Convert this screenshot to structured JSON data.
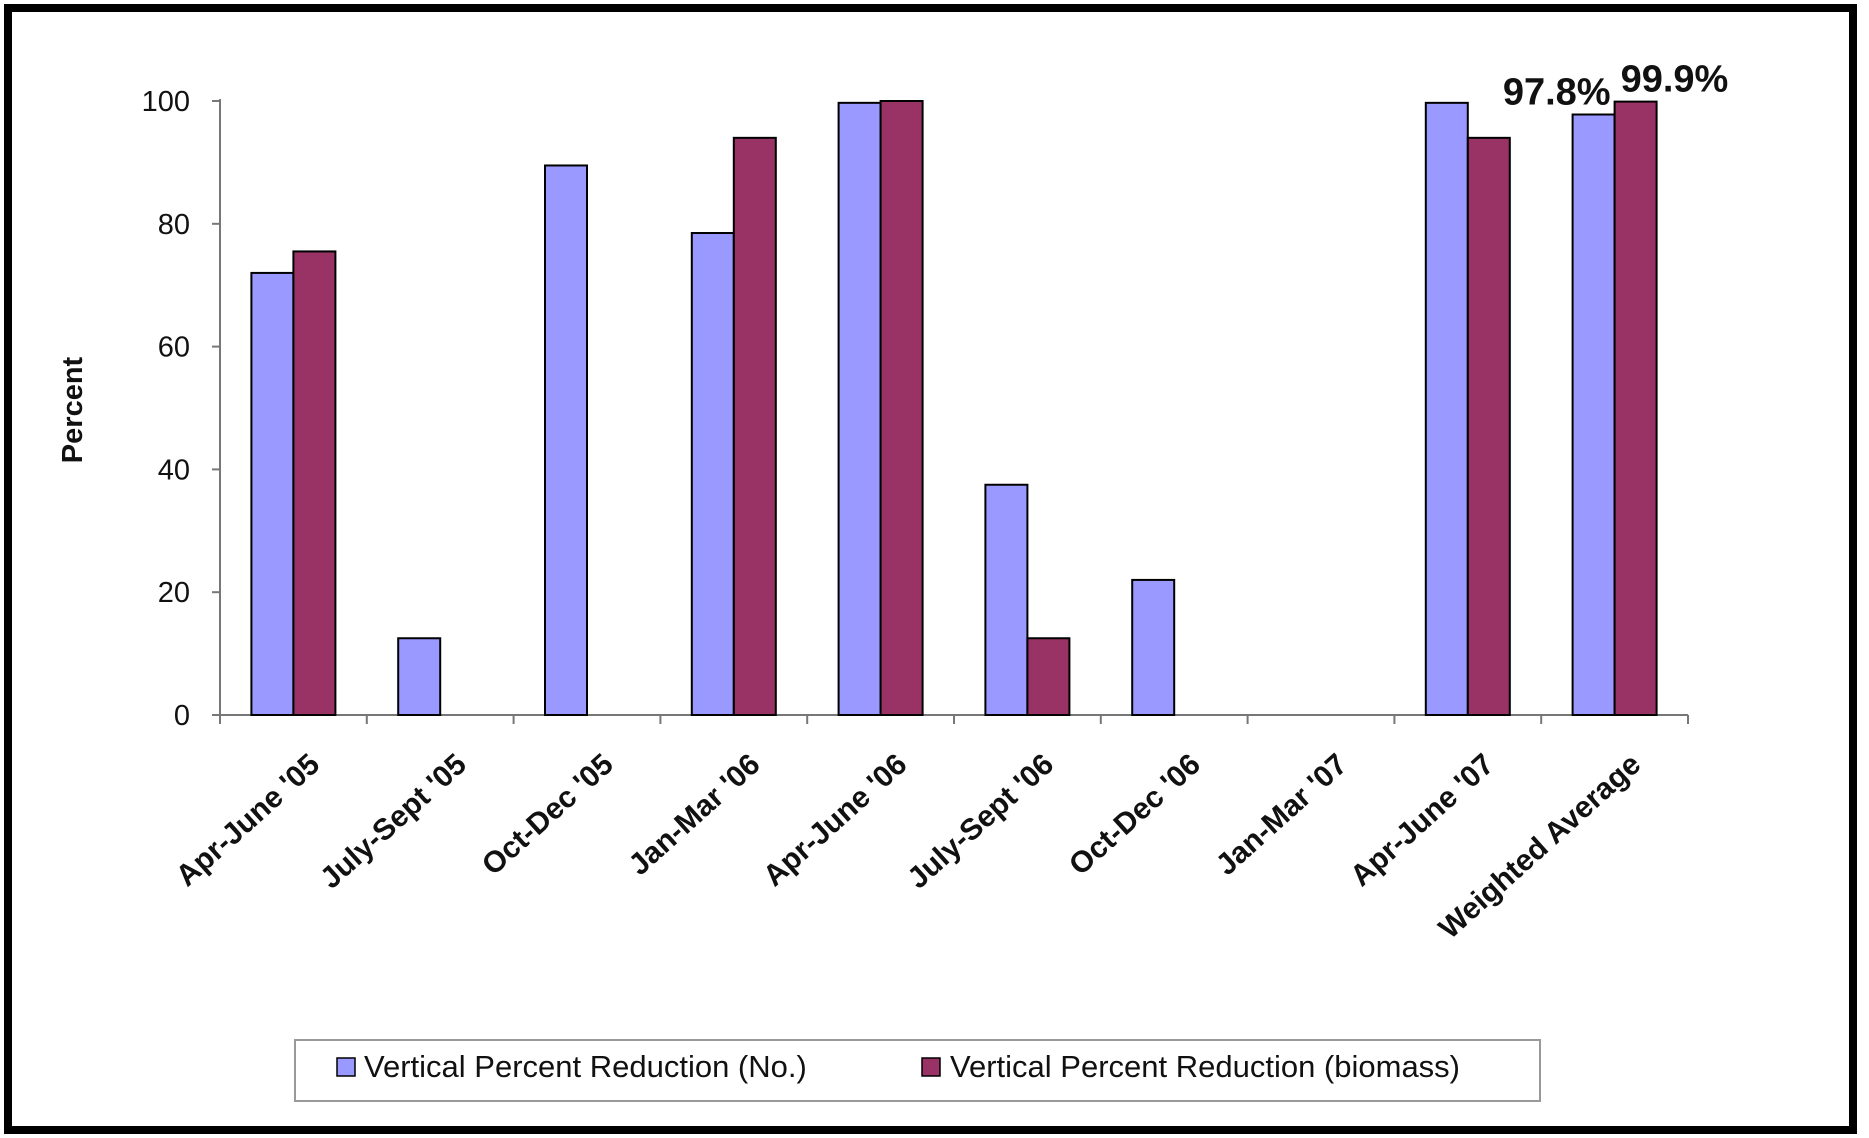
{
  "chart_data": {
    "type": "bar",
    "title": "",
    "xlabel": "",
    "ylabel": "Percent",
    "ylim": [
      0,
      100
    ],
    "yticks": [
      0,
      20,
      40,
      60,
      80,
      100
    ],
    "grid": false,
    "legend_position": "bottom",
    "categories": [
      "Apr-June '05",
      "July-Sept '05",
      "Oct-Dec '05",
      "Jan-Mar '06",
      "Apr-June '06",
      "July-Sept '06",
      "Oct-Dec '06",
      "Jan-Mar '07",
      "Apr-June '07",
      "Weighted Average"
    ],
    "series": [
      {
        "name": "Vertical Percent Reduction (No.)",
        "color": "#9999ff",
        "values": [
          72,
          12.5,
          89.5,
          78.5,
          99.7,
          37.5,
          22,
          null,
          99.7,
          97.8
        ]
      },
      {
        "name": "Vertical Percent Reduction (biomass)",
        "color": "#993366",
        "values": [
          75.5,
          null,
          null,
          94,
          100,
          12.5,
          null,
          null,
          94,
          99.9
        ]
      }
    ],
    "annotations": [
      {
        "text": "97.8%",
        "category": "Weighted Average",
        "series": 0
      },
      {
        "text": "99.9%",
        "category": "Weighted Average",
        "series": 1
      }
    ]
  }
}
